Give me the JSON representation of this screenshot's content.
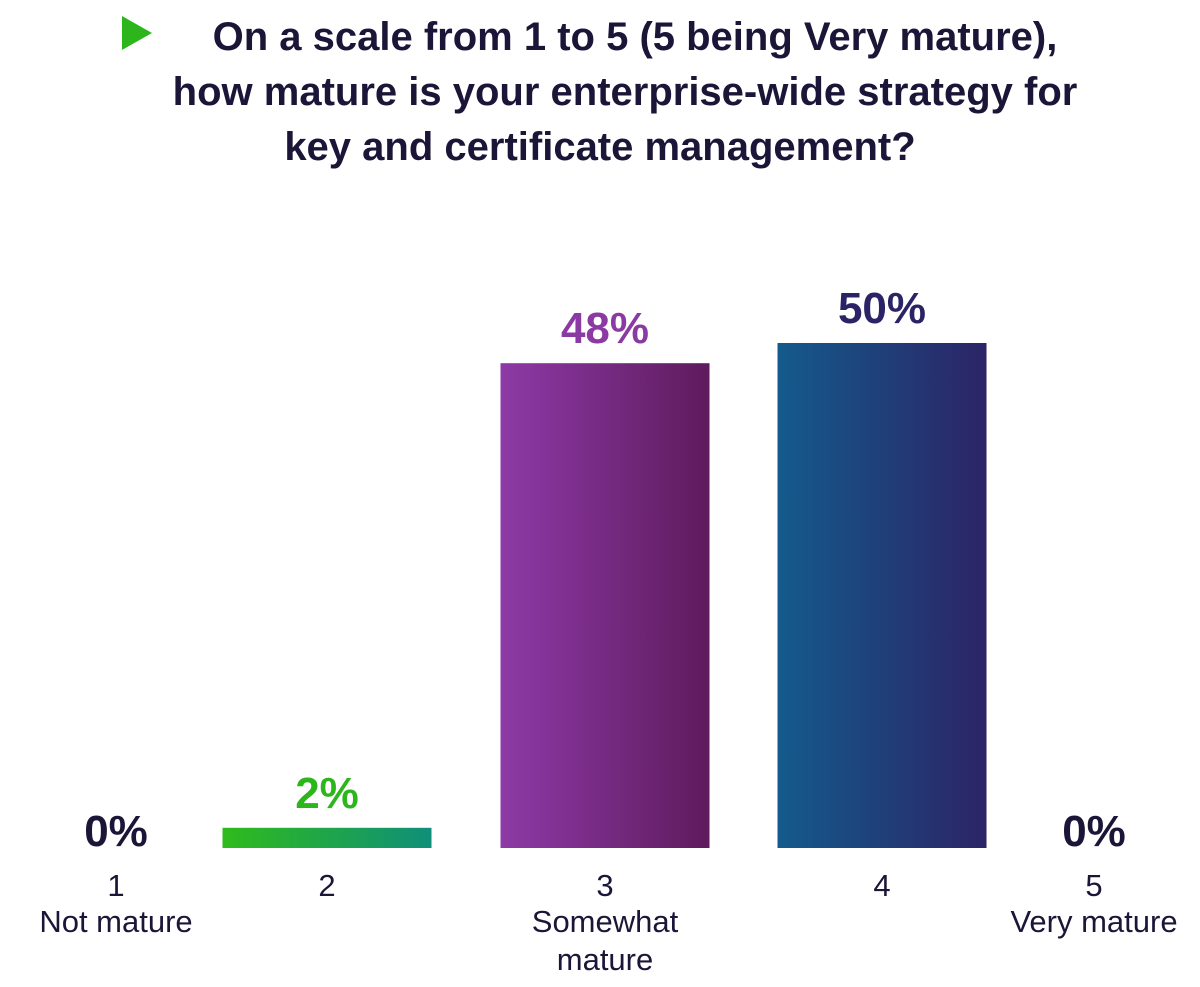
{
  "title_lines": [
    "On a scale from 1 to 5 (5 being Very mature),",
    "how mature is your enterprise-wide strategy for",
    "key and certificate management?"
  ],
  "colors": {
    "title": "#1b1638",
    "play_icon": "#2db51c",
    "label_default": "#1b1638",
    "axis_text": "#1b1638"
  },
  "chart_data": {
    "type": "bar",
    "categories": [
      "1",
      "2",
      "3",
      "4",
      "5"
    ],
    "category_sublabels": [
      "Not mature",
      "",
      "Somewhat\nmature",
      "",
      "Very mature"
    ],
    "values": [
      0,
      2,
      48,
      50,
      0
    ],
    "value_labels": [
      "0%",
      "2%",
      "48%",
      "50%",
      "0%"
    ],
    "label_colors": [
      "#1b1638",
      "#2db51c",
      "#8b3aa3",
      "#2a2466",
      "#1b1638"
    ],
    "bar_gradients": [
      [
        "#1b1638",
        "#1b1638"
      ],
      [
        "#2fbb1c",
        "#0f8f79"
      ],
      [
        "#8d3aa6",
        "#5e1b5d"
      ],
      [
        "#145a8c",
        "#2c2466"
      ],
      [
        "#1b1638",
        "#1b1638"
      ]
    ],
    "ylim": [
      0,
      50
    ],
    "grid": false,
    "legend": "none"
  }
}
